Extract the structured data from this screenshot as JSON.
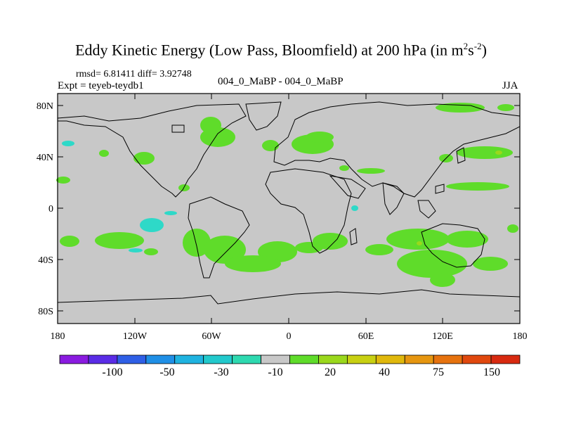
{
  "title": {
    "main": "Eddy Kinetic Energy (Low Pass, Bloomfield) at 200 hPa (in m",
    "sup1": "2",
    "mid": "s",
    "sup2": "-2",
    "tail": ")"
  },
  "stats": "rmsd= 6.81411 diff= 3.92748",
  "expt": "Expt = teyeb-teydb1",
  "case": "004_0_MaBP - 004_0_MaBP",
  "season": "JJA",
  "axes": {
    "lat_labels": [
      "80N",
      "40N",
      "0",
      "40S",
      "80S"
    ],
    "lon_labels": [
      "180",
      "120W",
      "60W",
      "0",
      "60E",
      "120E",
      "180"
    ]
  },
  "colorbar": {
    "colors": [
      "#8a1be0",
      "#5a2ce6",
      "#2f5fe6",
      "#1f8fe6",
      "#1fb3e0",
      "#22c9cc",
      "#2ed9b0",
      "#c8c8c8",
      "#5fdc2a",
      "#9ad81c",
      "#c8d012",
      "#e0b80c",
      "#e69610",
      "#e6720e",
      "#e0480e",
      "#d82a10"
    ],
    "labels": [
      "-100",
      "-50",
      "-30",
      "-10",
      "20",
      "40",
      "75",
      "150"
    ]
  },
  "colors": {
    "background": "#c8c8c8",
    "positive": "#5fdc2a",
    "negative": "#2ed9c8"
  }
}
